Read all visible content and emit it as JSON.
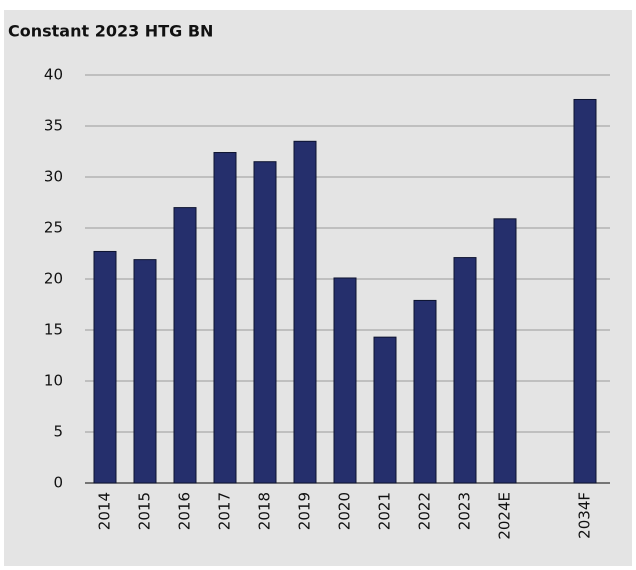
{
  "chart_data": {
    "type": "bar",
    "title": "Constant 2023 HTG BN",
    "categories": [
      "2014",
      "2015",
      "2016",
      "2017",
      "2018",
      "2019",
      "2020",
      "2021",
      "2022",
      "2023",
      "2024E",
      null,
      "2034F"
    ],
    "values": [
      22.7,
      21.9,
      27.0,
      32.4,
      31.5,
      33.5,
      20.1,
      14.3,
      17.9,
      22.1,
      25.9,
      null,
      37.6
    ],
    "color": "#252f6c",
    "ylim": [
      0,
      40
    ],
    "yticks": [
      0,
      5,
      10,
      15,
      20,
      25,
      30,
      35,
      40
    ],
    "grid": true
  }
}
